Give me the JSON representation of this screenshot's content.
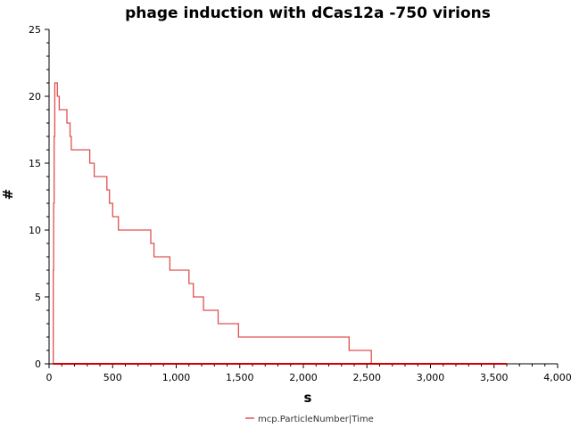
{
  "chart_data": {
    "type": "line",
    "title": "phage induction with dCas12a -750 virions",
    "xlabel": "s",
    "ylabel": "#",
    "xlim": [
      0,
      4000
    ],
    "ylim": [
      0,
      25
    ],
    "x_ticks": [
      0,
      500,
      1000,
      1500,
      2000,
      2500,
      3000,
      3500,
      4000
    ],
    "x_tick_labels": [
      "0",
      "500",
      "1,000",
      "1,500",
      "2,000",
      "2,500",
      "3,000",
      "3,500",
      "4,000"
    ],
    "y_ticks": [
      0,
      5,
      10,
      15,
      20,
      25
    ],
    "y_tick_labels": [
      "0",
      "5",
      "10",
      "15",
      "20",
      "25"
    ],
    "grid": false,
    "legend_position": "bottom-center",
    "series": [
      {
        "name": "mcp.ParticleNumber|Time",
        "color": "#e05050",
        "line_style": "step",
        "x": [
          30,
          33,
          36,
          40,
          45,
          55,
          65,
          80,
          100,
          140,
          165,
          175,
          195,
          320,
          355,
          455,
          475,
          500,
          545,
          590,
          800,
          825,
          855,
          950,
          1015,
          1100,
          1135,
          1215,
          1330,
          1490,
          2360,
          2535
        ],
        "y": [
          0,
          7,
          12,
          17,
          21,
          21,
          20,
          19,
          19,
          18,
          17,
          16,
          16,
          15,
          14,
          13,
          12,
          11,
          10,
          10,
          9,
          8,
          8,
          7,
          7,
          6,
          5,
          4,
          3,
          2,
          1,
          0
        ]
      },
      {
        "name": "",
        "color": "#cc0000",
        "line_style": "solid",
        "x": [
          30,
          3600
        ],
        "y": [
          0,
          0
        ]
      }
    ]
  }
}
